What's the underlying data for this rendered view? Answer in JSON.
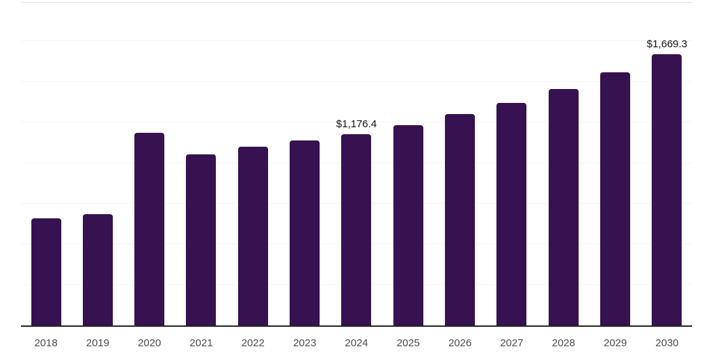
{
  "chart_data": {
    "type": "bar",
    "title": "",
    "xlabel": "",
    "ylabel": "",
    "categories": [
      "2018",
      "2019",
      "2020",
      "2021",
      "2022",
      "2023",
      "2024",
      "2025",
      "2026",
      "2027",
      "2028",
      "2029",
      "2030"
    ],
    "values": [
      660,
      685,
      1185,
      1052,
      1100,
      1138,
      1176.4,
      1232,
      1300,
      1369,
      1455,
      1557,
      1669.3
    ],
    "value_labels": [
      "",
      "",
      "",
      "",
      "",
      "",
      "$1,176.4",
      "",
      "",
      "",
      "",
      "",
      "$1,669.3"
    ],
    "ylim": [
      0,
      2000
    ],
    "gridline_step": 250,
    "grid": true,
    "legend_position": "none",
    "y_axis_tick_labels_visible": false,
    "colors": {
      "bar": "#361250",
      "axis_line": "#262626",
      "gridline": "#f5f5f5",
      "top_border": "#e3e3e3",
      "tick_label": "#4d4d4d",
      "value_label": "#111111",
      "background": "#ffffff"
    }
  }
}
